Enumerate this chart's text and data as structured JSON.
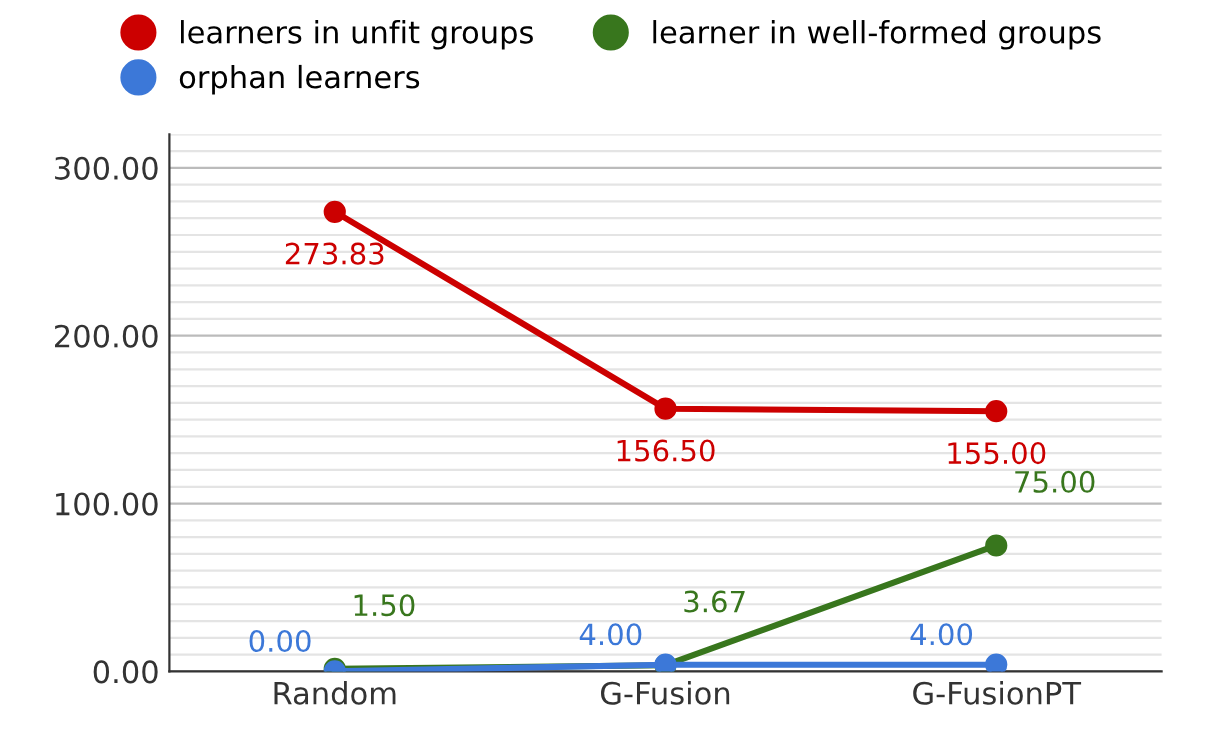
{
  "chart_data": {
    "type": "line",
    "categories": [
      "Random",
      "G-Fusion",
      "G-FusionPT"
    ],
    "series": [
      {
        "name": "learners in unfit groups",
        "color": "#cc0000",
        "values": [
          273.83,
          156.5,
          155.0
        ],
        "value_labels": [
          "273.83",
          "156.50",
          "155.00"
        ]
      },
      {
        "name": "learner in well-formed groups",
        "color": "#38761d",
        "values": [
          1.5,
          3.67,
          75.0
        ],
        "value_labels": [
          "1.50",
          "3.67",
          "75.00"
        ]
      },
      {
        "name": "orphan learners",
        "color": "#3c78d8",
        "values": [
          0.0,
          4.0,
          4.0
        ],
        "value_labels": [
          "0.00",
          "4.00",
          "4.00"
        ]
      }
    ],
    "ylim": [
      0,
      320
    ],
    "yticks": [
      {
        "value": 0,
        "label": "0.00"
      },
      {
        "value": 10,
        "label": null
      },
      {
        "value": 20,
        "label": null
      },
      {
        "value": 30,
        "label": null
      },
      {
        "value": 40,
        "label": null
      },
      {
        "value": 50,
        "label": null
      },
      {
        "value": 60,
        "label": null
      },
      {
        "value": 70,
        "label": null
      },
      {
        "value": 80,
        "label": null
      },
      {
        "value": 90,
        "label": null
      },
      {
        "value": 100,
        "label": "100.00"
      },
      {
        "value": 110,
        "label": null
      },
      {
        "value": 120,
        "label": null
      },
      {
        "value": 130,
        "label": null
      },
      {
        "value": 140,
        "label": null
      },
      {
        "value": 150,
        "label": null
      },
      {
        "value": 160,
        "label": null
      },
      {
        "value": 170,
        "label": null
      },
      {
        "value": 180,
        "label": null
      },
      {
        "value": 190,
        "label": null
      },
      {
        "value": 200,
        "label": "200.00"
      },
      {
        "value": 210,
        "label": null
      },
      {
        "value": 220,
        "label": null
      },
      {
        "value": 230,
        "label": null
      },
      {
        "value": 240,
        "label": null
      },
      {
        "value": 250,
        "label": null
      },
      {
        "value": 260,
        "label": null
      },
      {
        "value": 270,
        "label": null
      },
      {
        "value": 280,
        "label": null
      },
      {
        "value": 290,
        "label": null
      },
      {
        "value": 300,
        "label": "300.00"
      },
      {
        "value": 310,
        "label": null
      },
      {
        "value": 320,
        "label": null
      }
    ],
    "grid": "y",
    "legend": "top",
    "marker": "circle",
    "line_style": "solid"
  }
}
